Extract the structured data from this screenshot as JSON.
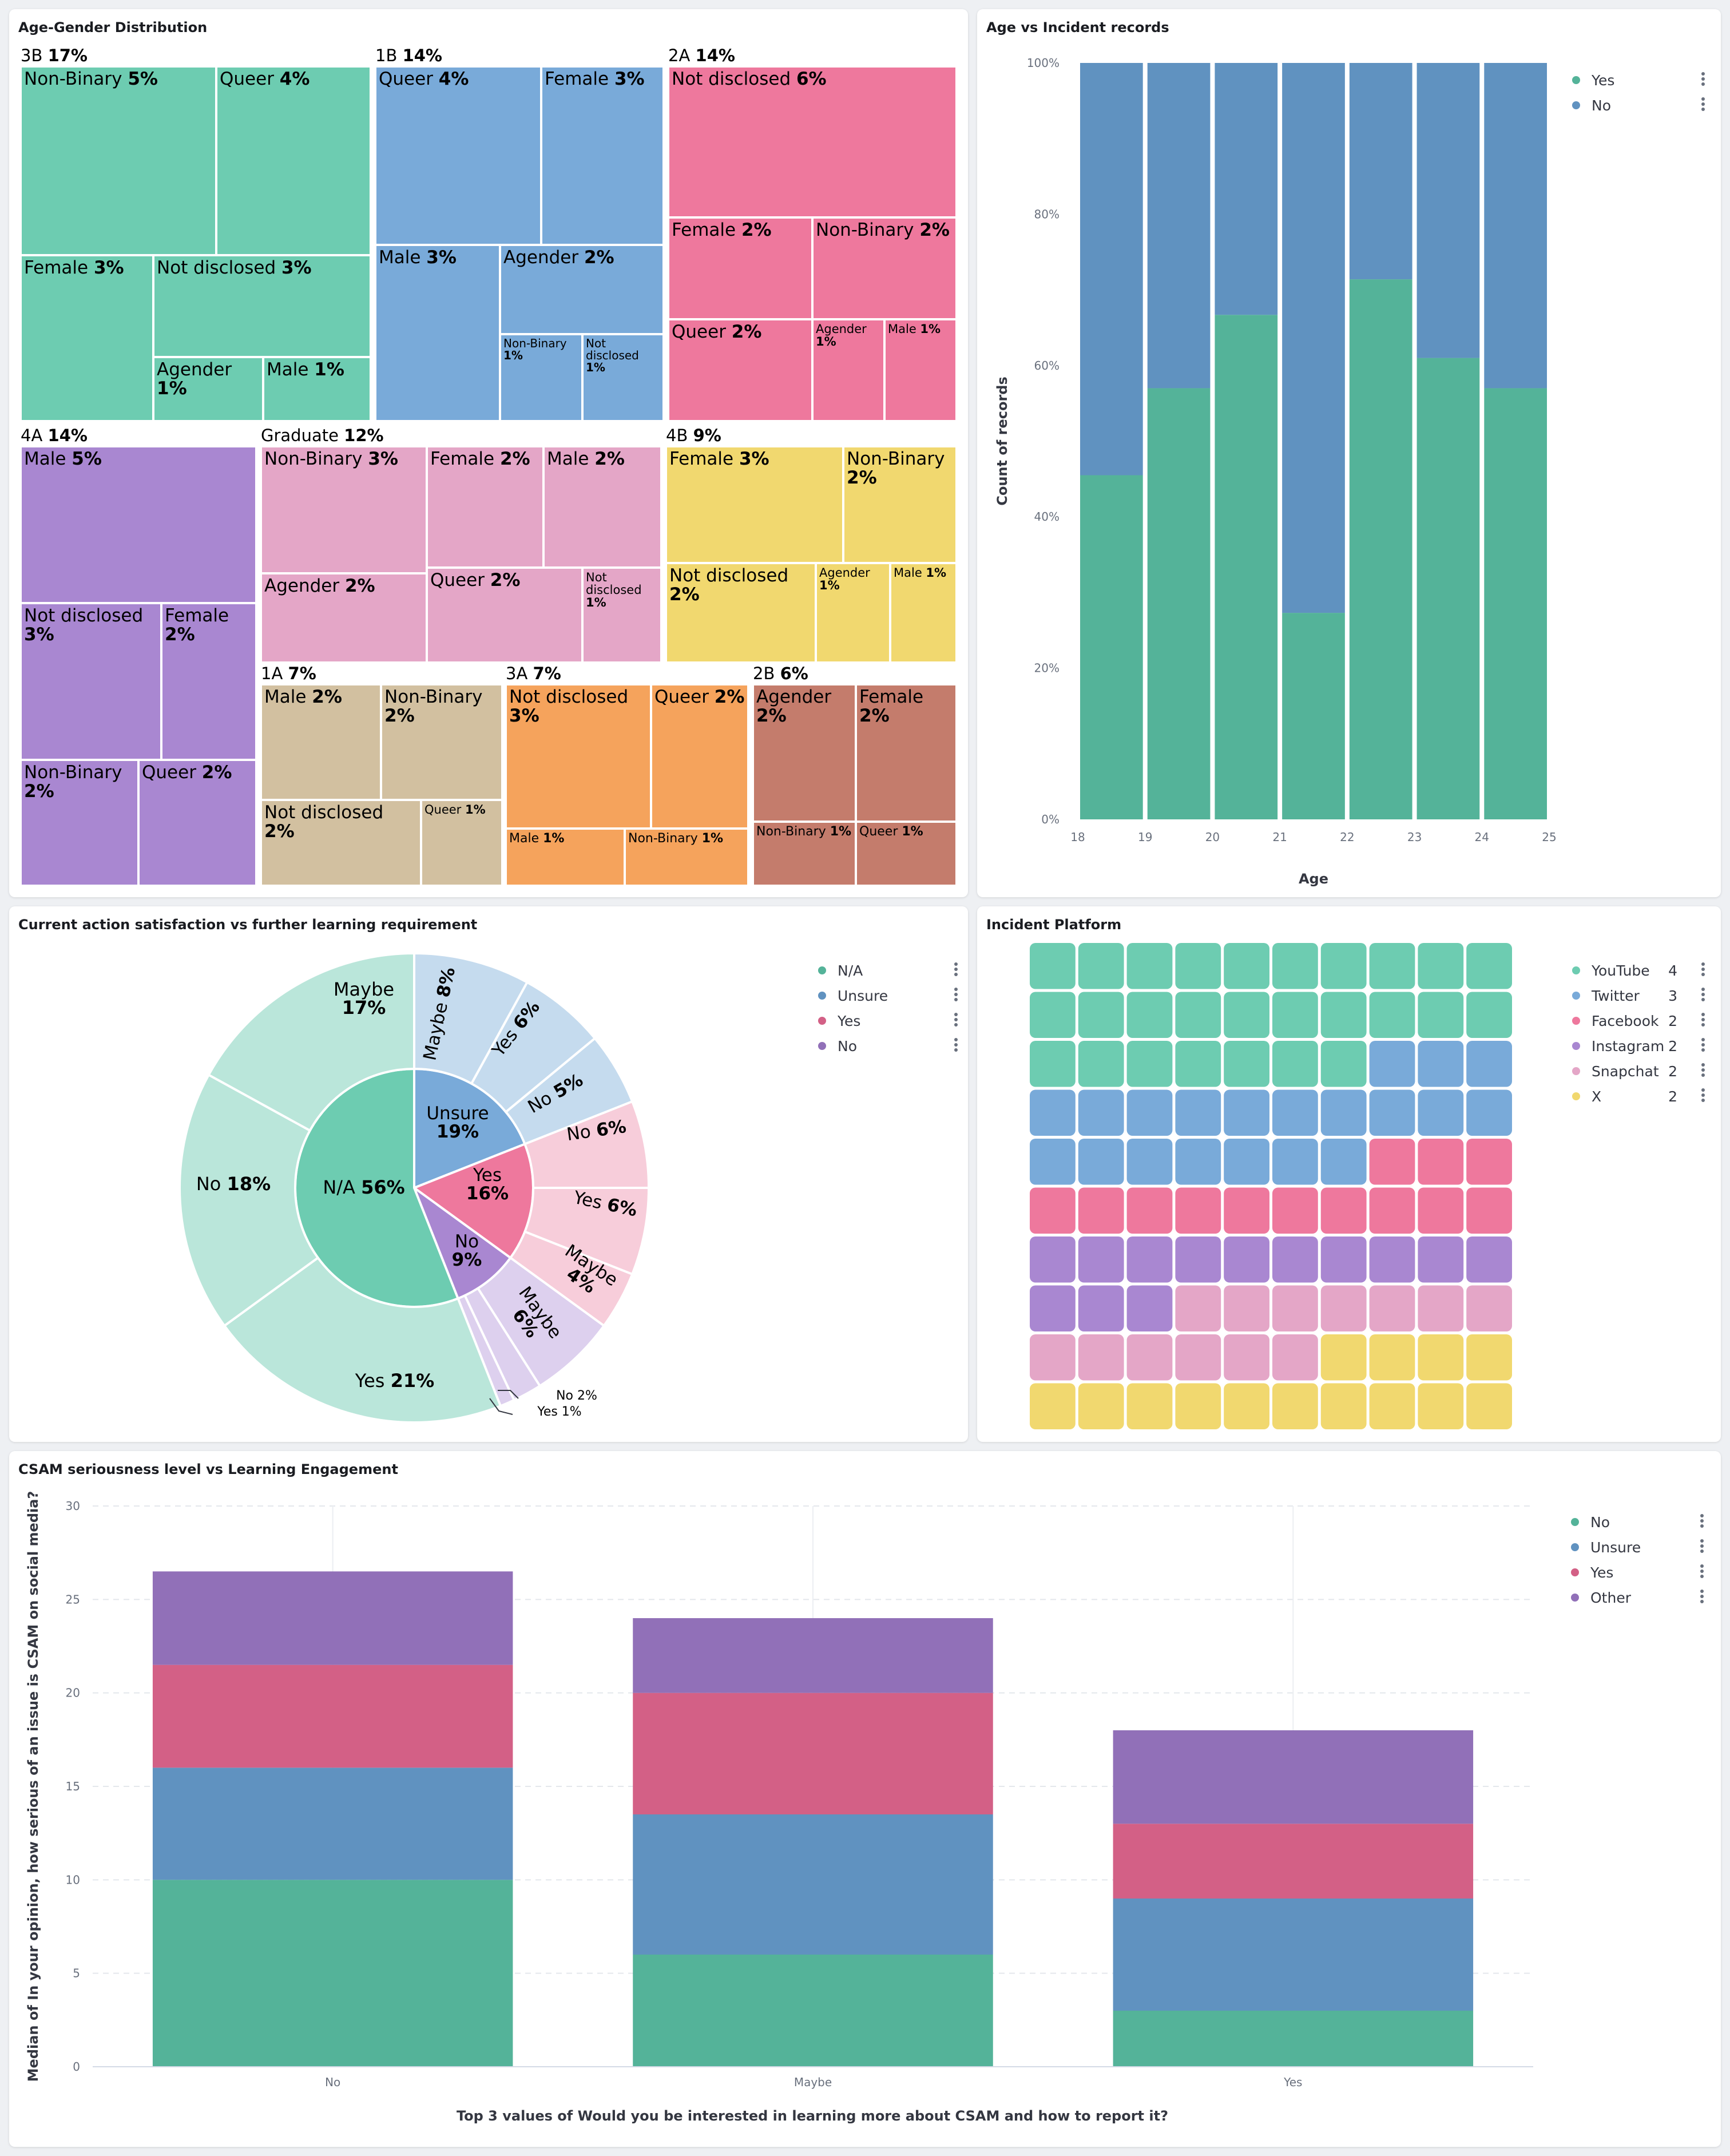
{
  "panels": {
    "treemap": {
      "title": "Age-Gender Distribution"
    },
    "age_incident": {
      "title": "Age vs Incident records"
    },
    "satisfaction": {
      "title": "Current action satisfaction vs further learning requirement"
    },
    "platform": {
      "title": "Incident Platform"
    },
    "csam": {
      "title": "CSAM seriousness level vs Learning Engagement"
    }
  },
  "colors": {
    "teal": "#54b399",
    "blue": "#6092c0",
    "pink": "#d36086",
    "purple": "#9170b8",
    "tm_3B": "#6dccb1",
    "tm_1B": "#79aad9",
    "tm_2A": "#ee789d",
    "tm_4A": "#a987d1",
    "tm_Graduate": "#e4a6c7",
    "tm_4B": "#f1d86f",
    "tm_1A": "#d2c0a0",
    "tm_3A": "#f5a35c",
    "tm_2B": "#c47c6c"
  },
  "chart_data": [
    {
      "type": "treemap",
      "title": "Age-Gender Distribution",
      "groups": [
        {
          "name": "3B",
          "pct": "17%",
          "color_key": "tm_3B",
          "children": [
            {
              "name": "Non-Binary",
              "pct": "5%"
            },
            {
              "name": "Queer",
              "pct": "4%"
            },
            {
              "name": "Female",
              "pct": "3%"
            },
            {
              "name": "Not disclosed",
              "pct": "3%"
            },
            {
              "name": "Agender",
              "pct": "1%"
            },
            {
              "name": "Male",
              "pct": "1%"
            }
          ]
        },
        {
          "name": "1B",
          "pct": "14%",
          "color_key": "tm_1B",
          "children": [
            {
              "name": "Queer",
              "pct": "4%"
            },
            {
              "name": "Female",
              "pct": "3%"
            },
            {
              "name": "Male",
              "pct": "3%"
            },
            {
              "name": "Agender",
              "pct": "2%"
            },
            {
              "name": "Non-Binary",
              "pct": "1%"
            },
            {
              "name": "Not disclosed",
              "pct": "1%"
            }
          ]
        },
        {
          "name": "2A",
          "pct": "14%",
          "color_key": "tm_2A",
          "children": [
            {
              "name": "Not disclosed",
              "pct": "6%"
            },
            {
              "name": "Female",
              "pct": "2%"
            },
            {
              "name": "Non-Binary",
              "pct": "2%"
            },
            {
              "name": "Queer",
              "pct": "2%"
            },
            {
              "name": "Agender",
              "pct": "1%"
            },
            {
              "name": "Male",
              "pct": "1%"
            }
          ]
        },
        {
          "name": "4A",
          "pct": "14%",
          "color_key": "tm_4A",
          "children": [
            {
              "name": "Male",
              "pct": "5%"
            },
            {
              "name": "Not disclosed",
              "pct": "3%"
            },
            {
              "name": "Female",
              "pct": "2%"
            },
            {
              "name": "Non-Binary",
              "pct": "2%"
            },
            {
              "name": "Queer",
              "pct": "2%"
            }
          ]
        },
        {
          "name": "Graduate",
          "pct": "12%",
          "color_key": "tm_Graduate",
          "children": [
            {
              "name": "Non-Binary",
              "pct": "3%"
            },
            {
              "name": "Female",
              "pct": "2%"
            },
            {
              "name": "Male",
              "pct": "2%"
            },
            {
              "name": "Agender",
              "pct": "2%"
            },
            {
              "name": "Queer",
              "pct": "2%"
            },
            {
              "name": "Not disclosed",
              "pct": "1%"
            }
          ]
        },
        {
          "name": "4B",
          "pct": "9%",
          "color_key": "tm_4B",
          "children": [
            {
              "name": "Female",
              "pct": "3%"
            },
            {
              "name": "Non-Binary",
              "pct": "2%"
            },
            {
              "name": "Not disclosed",
              "pct": "2%"
            },
            {
              "name": "Agender",
              "pct": "1%"
            },
            {
              "name": "Male",
              "pct": "1%"
            }
          ]
        },
        {
          "name": "1A",
          "pct": "7%",
          "color_key": "tm_1A",
          "children": [
            {
              "name": "Male",
              "pct": "2%"
            },
            {
              "name": "Non-Binary",
              "pct": "2%"
            },
            {
              "name": "Not disclosed",
              "pct": "2%"
            },
            {
              "name": "Queer",
              "pct": "1%"
            }
          ]
        },
        {
          "name": "3A",
          "pct": "7%",
          "color_key": "tm_3A",
          "children": [
            {
              "name": "Not disclosed",
              "pct": "3%"
            },
            {
              "name": "Queer",
              "pct": "2%"
            },
            {
              "name": "Male",
              "pct": "1%"
            },
            {
              "name": "Non-Binary",
              "pct": "1%"
            }
          ]
        },
        {
          "name": "2B",
          "pct": "6%",
          "color_key": "tm_2B",
          "children": [
            {
              "name": "Agender",
              "pct": "2%"
            },
            {
              "name": "Female",
              "pct": "2%"
            },
            {
              "name": "Non-Binary",
              "pct": "1%"
            },
            {
              "name": "Queer",
              "pct": "1%"
            }
          ]
        }
      ]
    },
    {
      "type": "bar",
      "stacked": "percent",
      "title": "Age vs Incident records",
      "xlabel": "Age",
      "ylabel": "Count of records",
      "x_ticks": [
        "18",
        "19",
        "20",
        "21",
        "22",
        "23",
        "24",
        "25"
      ],
      "y_ticks": [
        "0%",
        "20%",
        "40%",
        "60%",
        "80%",
        "100%"
      ],
      "ylim": [
        0,
        100
      ],
      "categories": [
        18,
        19,
        20,
        21,
        22,
        23,
        24
      ],
      "series": [
        {
          "name": "Yes",
          "color_key": "teal",
          "values": [
            45.5,
            57,
            66.7,
            27.3,
            71.4,
            61,
            57
          ]
        },
        {
          "name": "No",
          "color_key": "blue",
          "values": [
            54.5,
            43,
            33.3,
            72.7,
            28.6,
            39,
            43
          ]
        }
      ],
      "legend": "top-right"
    },
    {
      "type": "pie",
      "variant": "sunburst",
      "title": "Current action satisfaction vs further learning requirement",
      "inner": [
        {
          "name": "N/A",
          "pct": "56%",
          "value": 56,
          "color": "#6dccb1"
        },
        {
          "name": "Unsure",
          "pct": "19%",
          "value": 19,
          "color": "#79aad9"
        },
        {
          "name": "Yes",
          "pct": "16%",
          "value": 16,
          "color": "#ee789d"
        },
        {
          "name": "No",
          "pct": "9%",
          "value": 9,
          "color": "#a987d1"
        }
      ],
      "outer": [
        {
          "parent": "Unsure",
          "name": "Maybe",
          "pct": "8%",
          "value": 8,
          "color": "#c5dbee"
        },
        {
          "parent": "Unsure",
          "name": "Yes",
          "pct": "6%",
          "value": 6,
          "color": "#c5dbee"
        },
        {
          "parent": "Unsure",
          "name": "No",
          "pct": "5%",
          "value": 5,
          "color": "#c5dbee"
        },
        {
          "parent": "Yes",
          "name": "No",
          "pct": "6%",
          "value": 6,
          "color": "#f7cdda"
        },
        {
          "parent": "Yes",
          "name": "Yes",
          "pct": "6%",
          "value": 6,
          "color": "#f7cdda"
        },
        {
          "parent": "Yes",
          "name": "Maybe",
          "pct": "4%",
          "value": 4,
          "color": "#f7cdda"
        },
        {
          "parent": "No",
          "name": "Maybe",
          "pct": "6%",
          "value": 6,
          "color": "#ddd0ee"
        },
        {
          "parent": "No",
          "name": "No",
          "pct": "2%",
          "value": 2,
          "color": "#ddd0ee"
        },
        {
          "parent": "No",
          "name": "Yes",
          "pct": "1%",
          "value": 1,
          "color": "#ddd0ee"
        },
        {
          "parent": "N/A",
          "name": "Yes",
          "pct": "21%",
          "value": 21,
          "color": "#bae6da"
        },
        {
          "parent": "N/A",
          "name": "No",
          "pct": "18%",
          "value": 18,
          "color": "#bae6da"
        },
        {
          "parent": "N/A",
          "name": "Maybe",
          "pct": "17%",
          "value": 17,
          "color": "#bae6da"
        }
      ],
      "legend": [
        {
          "name": "N/A",
          "color": "#54b399"
        },
        {
          "name": "Unsure",
          "color": "#6092c0"
        },
        {
          "name": "Yes",
          "color": "#d36086"
        },
        {
          "name": "No",
          "color": "#9170b8"
        }
      ]
    },
    {
      "type": "waffle",
      "title": "Incident Platform",
      "rows": 10,
      "cols": 10,
      "cells": {
        "YouTube": 27,
        "Twitter": 20,
        "Facebook": 13,
        "Instagram": 13,
        "Snapchat": 13,
        "X": 14
      },
      "legend": [
        {
          "name": "YouTube",
          "count": "4",
          "color": "#6dccb1"
        },
        {
          "name": "Twitter",
          "count": "3",
          "color": "#79aad9"
        },
        {
          "name": "Facebook",
          "count": "2",
          "color": "#ee789d"
        },
        {
          "name": "Instagram",
          "count": "2",
          "color": "#a987d1"
        },
        {
          "name": "Snapchat",
          "count": "2",
          "color": "#e4a6c7"
        },
        {
          "name": "X",
          "count": "2",
          "color": "#f1d86f"
        }
      ]
    },
    {
      "type": "bar",
      "stacked": "absolute",
      "title": "CSAM seriousness level vs Learning Engagement",
      "xlabel": "Top 3 values of Would you be interested in learning more about CSAM and how to report it?",
      "ylabel": "Median of In your opinion, how serious of an issue is CSAM on social media?",
      "categories": [
        "No",
        "Maybe",
        "Yes"
      ],
      "y_ticks": [
        "0",
        "5",
        "10",
        "15",
        "20",
        "25",
        "30"
      ],
      "ylim": [
        0,
        30
      ],
      "series": [
        {
          "name": "No",
          "color_key": "teal",
          "values": [
            10,
            6,
            3
          ]
        },
        {
          "name": "Unsure",
          "color_key": "blue",
          "values": [
            6,
            7.5,
            6
          ]
        },
        {
          "name": "Yes",
          "color_key": "pink",
          "values": [
            5.5,
            6.5,
            4
          ]
        },
        {
          "name": "Other",
          "color_key": "purple",
          "values": [
            5,
            4,
            5
          ]
        }
      ],
      "legend": "top-right"
    }
  ]
}
